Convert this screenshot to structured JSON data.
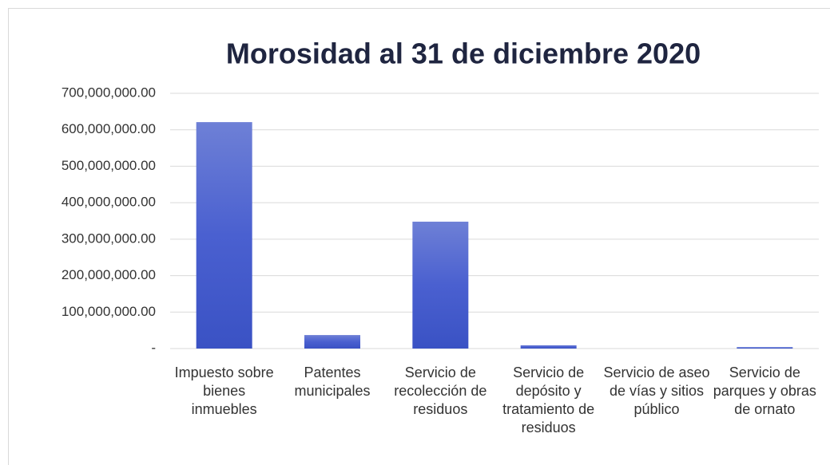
{
  "chart_data": {
    "type": "bar",
    "title": "Morosidad al 31 de diciembre 2020",
    "categories": [
      "Impuesto sobre bienes inmuebles",
      "Patentes municipales",
      "Servicio de recolección de residuos",
      "Servicio de depósito y tratamiento de residuos",
      "Servicio de aseo de vías y sitios público",
      "Servicio de parques y obras de ornato"
    ],
    "values": [
      621000000,
      37000000,
      348000000,
      9000000,
      0,
      4000000
    ],
    "color": "#4a63cc",
    "ylim": [
      0,
      700000000
    ],
    "yticks": [
      {
        "value": 0,
        "label": "-"
      },
      {
        "value": 100000000,
        "label": "100,000,000.00"
      },
      {
        "value": 200000000,
        "label": "200,000,000.00"
      },
      {
        "value": 300000000,
        "label": "300,000,000.00"
      },
      {
        "value": 400000000,
        "label": "400,000,000.00"
      },
      {
        "value": 500000000,
        "label": "500,000,000.00"
      },
      {
        "value": 600000000,
        "label": "600,000,000.00"
      },
      {
        "value": 700000000,
        "label": "700,000,000.00"
      }
    ],
    "grid": true
  }
}
